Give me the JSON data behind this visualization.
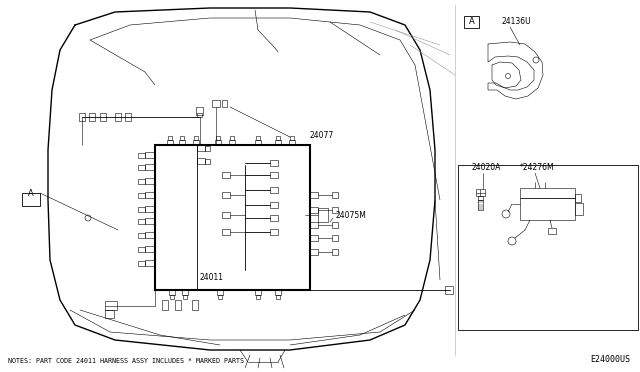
{
  "bg_color": "#ffffff",
  "line_color": "#000000",
  "fig_width": 6.4,
  "fig_height": 3.72,
  "dpi": 100,
  "note_text": "NOTES: PART CODE 24011 HARNESS ASSY INCLUDES * MARKED PARTS",
  "diagram_id": "E24000US",
  "label_A": "A",
  "label_24077": "24077",
  "label_24075M": "24075M",
  "label_24011": "24011",
  "label_24136U": "24136U",
  "label_24020A": "24020A",
  "label_24276M": "*24276M",
  "font_size_small": 5.5,
  "font_size_note": 4.8,
  "font_size_id": 6.0
}
